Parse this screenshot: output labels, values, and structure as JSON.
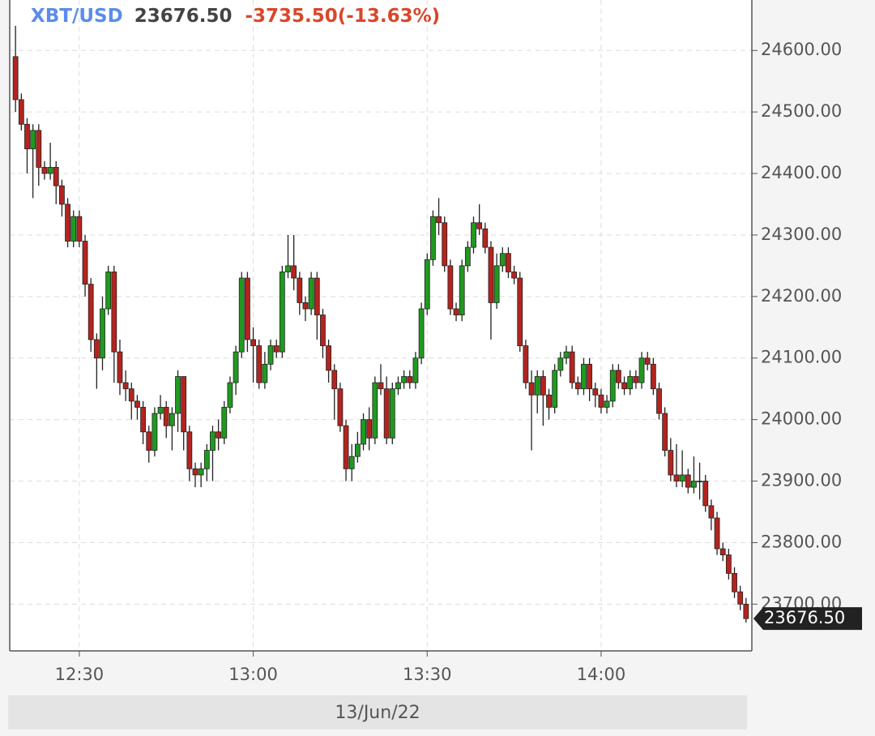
{
  "header": {
    "symbol": "XBT/USD",
    "price": "23676.50",
    "change": "-3735.50(-13.63%)"
  },
  "chart_data": {
    "type": "candlestick",
    "date_label": "13/Jun/22",
    "x": [
      "12:19",
      "12:20",
      "12:21",
      "12:22",
      "12:23",
      "12:24",
      "12:25",
      "12:26",
      "12:27",
      "12:28",
      "12:29",
      "12:30",
      "12:31",
      "12:32",
      "12:33",
      "12:34",
      "12:35",
      "12:36",
      "12:37",
      "12:38",
      "12:39",
      "12:40",
      "12:41",
      "12:42",
      "12:43",
      "12:44",
      "12:45",
      "12:46",
      "12:47",
      "12:48",
      "12:49",
      "12:50",
      "12:51",
      "12:52",
      "12:53",
      "12:54",
      "12:55",
      "12:56",
      "12:57",
      "12:58",
      "12:59",
      "13:00",
      "13:01",
      "13:02",
      "13:03",
      "13:04",
      "13:05",
      "13:06",
      "13:07",
      "13:08",
      "13:09",
      "13:10",
      "13:11",
      "13:12",
      "13:13",
      "13:14",
      "13:15",
      "13:16",
      "13:17",
      "13:18",
      "13:19",
      "13:20",
      "13:21",
      "13:22",
      "13:23",
      "13:24",
      "13:25",
      "13:26",
      "13:27",
      "13:28",
      "13:29",
      "13:30",
      "13:31",
      "13:32",
      "13:33",
      "13:34",
      "13:35",
      "13:36",
      "13:37",
      "13:38",
      "13:39",
      "13:40",
      "13:41",
      "13:42",
      "13:43",
      "13:44",
      "13:45",
      "13:46",
      "13:47",
      "13:48",
      "13:49",
      "13:50",
      "13:51",
      "13:52",
      "13:53",
      "13:54",
      "13:55",
      "13:56",
      "13:57",
      "13:58",
      "13:59",
      "14:00",
      "14:01",
      "14:02",
      "14:03",
      "14:04",
      "14:05",
      "14:06",
      "14:07",
      "14:08",
      "14:09",
      "14:10",
      "14:11",
      "14:12",
      "14:13",
      "14:14",
      "14:15",
      "14:16",
      "14:17",
      "14:18",
      "14:19",
      "14:20",
      "14:21",
      "14:22",
      "14:23",
      "14:24",
      "14:25"
    ],
    "open": [
      24590,
      24520,
      24480,
      24440,
      24470,
      24410,
      24400,
      24410,
      24380,
      24350,
      24290,
      24330,
      24290,
      24220,
      24130,
      24100,
      24180,
      24240,
      24110,
      24060,
      24050,
      24030,
      24020,
      23980,
      23950,
      24010,
      24020,
      23990,
      24010,
      24070,
      23980,
      23920,
      23910,
      23920,
      23950,
      23980,
      23970,
      24020,
      24060,
      24110,
      24230,
      24130,
      24120,
      24060,
      24090,
      24120,
      24110,
      24240,
      24250,
      24230,
      24190,
      24180,
      24230,
      24170,
      24120,
      24080,
      24050,
      23990,
      23920,
      23940,
      23960,
      24000,
      23970,
      24060,
      24050,
      23970,
      24050,
      24060,
      24070,
      24060,
      24100,
      24180,
      24260,
      24330,
      24320,
      24250,
      24180,
      24170,
      24250,
      24280,
      24320,
      24310,
      24280,
      24190,
      24250,
      24270,
      24240,
      24230,
      24120,
      24060,
      24040,
      24070,
      24040,
      24020,
      24080,
      24100,
      24110,
      24060,
      24050,
      24090,
      24050,
      24040,
      24020,
      24030,
      24080,
      24060,
      24050,
      24070,
      24060,
      24100,
      24090,
      24050,
      24010,
      23950,
      23910,
      23900,
      23910,
      23890,
      23900,
      23900,
      23860,
      23840,
      23790,
      23780,
      23750,
      23720,
      23700
    ],
    "high": [
      24640,
      24530,
      24490,
      24480,
      24480,
      24420,
      24450,
      24420,
      24390,
      24360,
      24340,
      24340,
      24300,
      24230,
      24140,
      24200,
      24250,
      24250,
      24130,
      24080,
      24060,
      24040,
      24030,
      23990,
      24020,
      24040,
      24030,
      24020,
      24080,
      24070,
      23990,
      23930,
      23930,
      23960,
      23990,
      24000,
      24030,
      24070,
      24120,
      24240,
      24240,
      24150,
      24130,
      24110,
      24130,
      24130,
      24250,
      24300,
      24300,
      24240,
      24200,
      24240,
      24240,
      24180,
      24130,
      24090,
      24060,
      24000,
      23960,
      23980,
      24010,
      24020,
      24070,
      24090,
      24070,
      24060,
      24070,
      24080,
      24080,
      24110,
      24190,
      24270,
      24340,
      24360,
      24330,
      24260,
      24190,
      24260,
      24290,
      24330,
      24350,
      24320,
      24290,
      24270,
      24280,
      24280,
      24250,
      24240,
      24130,
      24080,
      24080,
      24080,
      24050,
      24090,
      24110,
      24120,
      24120,
      24070,
      24100,
      24100,
      24060,
      24050,
      24040,
      24090,
      24090,
      24070,
      24080,
      24080,
      24110,
      24110,
      24100,
      24060,
      24020,
      23970,
      23960,
      23950,
      23920,
      23940,
      23930,
      23910,
      23870,
      23850,
      23800,
      23790,
      23760,
      23730,
      23710
    ],
    "low": [
      24500,
      24470,
      24400,
      24360,
      24380,
      24390,
      24390,
      24350,
      24330,
      24280,
      24280,
      24280,
      24200,
      24110,
      24050,
      24080,
      24170,
      24060,
      24040,
      24030,
      24000,
      24000,
      23960,
      23930,
      23940,
      24000,
      23970,
      23950,
      23980,
      23950,
      23900,
      23890,
      23890,
      23900,
      23900,
      23950,
      23960,
      24010,
      24040,
      24100,
      24110,
      24060,
      24050,
      24050,
      24080,
      24100,
      24100,
      24230,
      24210,
      24170,
      24160,
      24170,
      24130,
      24100,
      24060,
      24000,
      23980,
      23900,
      23900,
      23930,
      23950,
      23950,
      23960,
      24040,
      23960,
      23960,
      24040,
      24050,
      24050,
      24050,
      24090,
      24170,
      24250,
      24300,
      24240,
      24170,
      24160,
      24160,
      24240,
      24270,
      24300,
      24270,
      24130,
      24180,
      24240,
      24230,
      24220,
      24110,
      24050,
      23950,
      24010,
      23990,
      24000,
      24010,
      24070,
      24090,
      24050,
      24040,
      24040,
      24030,
      24020,
      24010,
      24010,
      24020,
      24050,
      24040,
      24040,
      24050,
      24050,
      24080,
      24040,
      24000,
      23940,
      23900,
      23890,
      23890,
      23880,
      23880,
      23870,
      23850,
      23820,
      23780,
      23770,
      23740,
      23710,
      23690,
      23670
    ],
    "close": [
      24520,
      24480,
      24440,
      24470,
      24410,
      24400,
      24410,
      24380,
      24350,
      24290,
      24330,
      24290,
      24220,
      24130,
      24100,
      24180,
      24240,
      24110,
      24060,
      24050,
      24030,
      24020,
      23980,
      23950,
      24010,
      24020,
      23990,
      24010,
      24070,
      23980,
      23920,
      23910,
      23920,
      23950,
      23980,
      23970,
      24020,
      24060,
      24110,
      24230,
      24130,
      24120,
      24060,
      24090,
      24120,
      24110,
      24240,
      24250,
      24230,
      24190,
      24180,
      24230,
      24170,
      24120,
      24080,
      24050,
      23990,
      23920,
      23940,
      23960,
      24000,
      23970,
      24060,
      24050,
      23970,
      24050,
      24060,
      24070,
      24060,
      24100,
      24180,
      24260,
      24330,
      24320,
      24250,
      24180,
      24170,
      24250,
      24280,
      24320,
      24310,
      24280,
      24190,
      24250,
      24270,
      24240,
      24230,
      24120,
      24060,
      24040,
      24070,
      24040,
      24020,
      24080,
      24100,
      24110,
      24060,
      24050,
      24090,
      24050,
      24040,
      24020,
      24030,
      24080,
      24060,
      24050,
      24070,
      24060,
      24100,
      24090,
      24050,
      24010,
      23950,
      23910,
      23900,
      23910,
      23890,
      23900,
      23900,
      23860,
      23840,
      23790,
      23780,
      23750,
      23720,
      23700,
      23676.5
    ],
    "up_color": "#1f9a1f",
    "down_color": "#b3241f",
    "xlim": [
      "12:18",
      "14:26"
    ],
    "xticks": [
      "12:30",
      "13:00",
      "13:30",
      "14:00"
    ],
    "ylim": [
      23624,
      24682
    ],
    "yticks": [
      {
        "value": 23700,
        "label": "23700.00"
      },
      {
        "value": 23800,
        "label": "23800.00"
      },
      {
        "value": 23900,
        "label": "23900.00"
      },
      {
        "value": 24000,
        "label": "24000.00"
      },
      {
        "value": 24100,
        "label": "24100.00"
      },
      {
        "value": 24200,
        "label": "24200.00"
      },
      {
        "value": 24300,
        "label": "24300.00"
      },
      {
        "value": 24400,
        "label": "24400.00"
      },
      {
        "value": 24500,
        "label": "24500.00"
      },
      {
        "value": 24600,
        "label": "24600.00"
      }
    ],
    "grid": true
  }
}
